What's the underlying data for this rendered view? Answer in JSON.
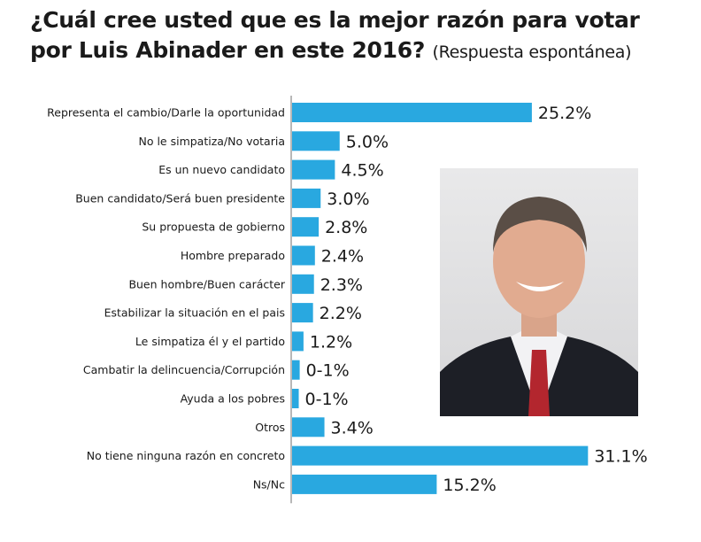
{
  "chart_data": {
    "type": "bar",
    "orientation": "horizontal",
    "title": "¿Cuál cree usted que es la mejor razón para votar por Luis Abinader en este 2016?",
    "subtitle": "(Respuesta espontánea)",
    "xlabel": "",
    "ylabel": "",
    "grid": false,
    "bar_color": "#29a8e0",
    "categories": [
      "Representa el cambio/Darle la oportunidad",
      "No le simpatiza/No votaria",
      "Es un nuevo candidato",
      "Buen candidato/Será buen presidente",
      "Su propuesta de gobierno",
      "Hombre preparado",
      "Buen hombre/Buen carácter",
      "Estabilizar la situación en el pais",
      "Le simpatiza él y el partido",
      "Cambatir la delincuencia/Corrupción",
      "Ayuda a los pobres",
      "Otros",
      "No tiene ninguna razón en concreto",
      "Ns/Nc"
    ],
    "values": [
      25.2,
      5.0,
      4.5,
      3.0,
      2.8,
      2.4,
      2.3,
      2.2,
      1.2,
      0.8,
      0.7,
      3.4,
      31.1,
      15.2
    ],
    "data_labels": [
      "25.2%",
      "5.0%",
      "4.5%",
      "3.0%",
      "2.8%",
      "2.4%",
      "2.3%",
      "2.2%",
      "1.2%",
      "0-1%",
      "0-1%",
      "3.4%",
      "31.1%",
      "15.2%"
    ]
  },
  "photo": {
    "subject": "portrait-photo"
  }
}
